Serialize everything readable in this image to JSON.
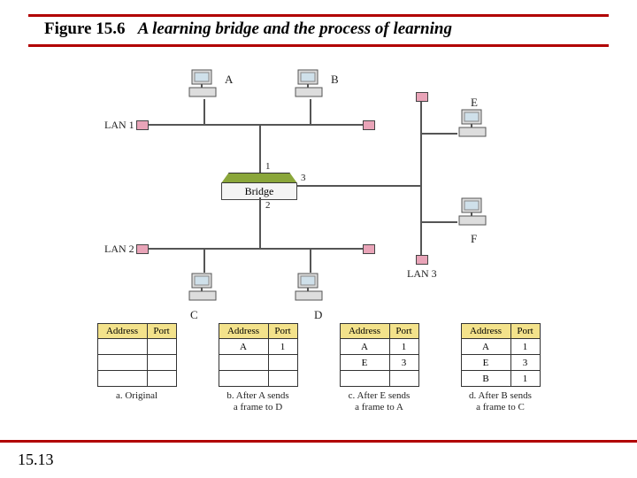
{
  "title": {
    "figure": "Figure 15.6",
    "caption": "A learning bridge and the process of learning"
  },
  "page_number": "15.13",
  "colors": {
    "rule": "#b10000",
    "hub": "#e9a4b8",
    "bridge_top": "#8aa63a",
    "table_header_bg": "#f3e28b"
  },
  "diagram": {
    "hosts": {
      "A": "A",
      "B": "B",
      "C": "C",
      "D": "D",
      "E": "E",
      "F": "F"
    },
    "lans": {
      "lan1": "LAN 1",
      "lan2": "LAN 2",
      "lan3": "LAN 3"
    },
    "bridge": {
      "label": "Bridge",
      "ports": {
        "p1": "1",
        "p2": "2",
        "p3": "3"
      }
    }
  },
  "tables": {
    "headers": {
      "addr": "Address",
      "port": "Port"
    },
    "a": {
      "caption": "a. Original",
      "rows": [
        [
          "",
          ""
        ],
        [
          "",
          ""
        ],
        [
          "",
          ""
        ]
      ]
    },
    "b": {
      "caption": "b. After A sends\na frame to D",
      "rows": [
        [
          "A",
          "1"
        ],
        [
          "",
          ""
        ],
        [
          "",
          ""
        ]
      ]
    },
    "c": {
      "caption": "c. After E sends\na frame to A",
      "rows": [
        [
          "A",
          "1"
        ],
        [
          "E",
          "3"
        ],
        [
          "",
          ""
        ]
      ]
    },
    "d": {
      "caption": "d. After B sends\na frame to C",
      "rows": [
        [
          "A",
          "1"
        ],
        [
          "E",
          "3"
        ],
        [
          "B",
          "1"
        ]
      ]
    }
  }
}
